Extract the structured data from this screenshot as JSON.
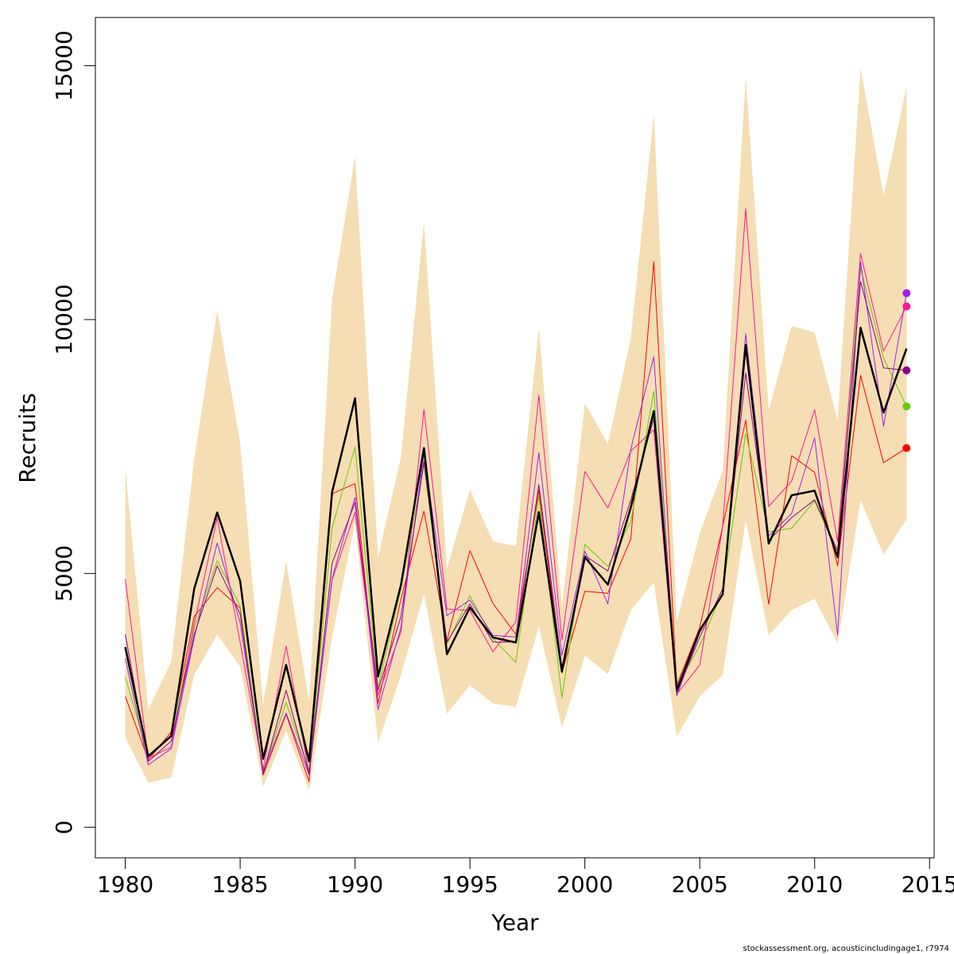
{
  "chart_data": {
    "type": "line",
    "xlabel": "Year",
    "ylabel": "Recruits",
    "xlim": [
      1978.7,
      2015.2
    ],
    "ylim": [
      -600,
      15950
    ],
    "x_ticks": [
      1980,
      1985,
      1990,
      1995,
      2000,
      2005,
      2010,
      2015
    ],
    "y_ticks": [
      0,
      5000,
      10000,
      15000
    ],
    "x": [
      1980,
      1981,
      1982,
      1983,
      1984,
      1985,
      1986,
      1987,
      1988,
      1989,
      1990,
      1991,
      1992,
      1993,
      1994,
      1995,
      1996,
      1997,
      1998,
      1999,
      2000,
      2001,
      2002,
      2003,
      2004,
      2005,
      2006,
      2007,
      2008,
      2009,
      2010,
      2011,
      2012,
      2013,
      2014
    ],
    "band": {
      "color": "#F5DEB3",
      "upper": [
        7080,
        2320,
        3260,
        7260,
        10180,
        7580,
        2420,
        5250,
        2480,
        10400,
        13220,
        5320,
        7300,
        11920,
        5100,
        6650,
        5630,
        5540,
        9830,
        4350,
        8350,
        7550,
        9630,
        14060,
        4050,
        5790,
        7030,
        14790,
        8220,
        9870,
        9750,
        8010,
        14960,
        12440,
        14580
      ],
      "lower": [
        1770,
        880,
        980,
        3000,
        3800,
        3160,
        800,
        1900,
        730,
        3740,
        6000,
        1670,
        3000,
        4600,
        2240,
        2800,
        2440,
        2370,
        3960,
        1960,
        3380,
        3020,
        4280,
        4820,
        1780,
        2580,
        3000,
        6050,
        3780,
        4280,
        4500,
        3630,
        6440,
        5370,
        6070
      ]
    },
    "series": [
      {
        "color": "#FF0000",
        "width": 1,
        "end_point": true,
        "values": [
          2580,
          1330,
          1880,
          4150,
          4720,
          4320,
          1030,
          2230,
          900,
          6570,
          6770,
          2440,
          4500,
          6230,
          3680,
          5450,
          4410,
          3800,
          6640,
          3040,
          4650,
          4610,
          5680,
          11140,
          2800,
          3940,
          5930,
          8020,
          4390,
          7320,
          6990,
          5150,
          8900,
          7180,
          7470
        ]
      },
      {
        "color": "#66CC00",
        "width": 1,
        "end_point": true,
        "values": [
          2960,
          1400,
          1820,
          3920,
          5250,
          4360,
          1100,
          2460,
          1120,
          5900,
          7490,
          2750,
          4700,
          7140,
          3610,
          4560,
          3720,
          3250,
          6520,
          2550,
          5570,
          5140,
          6020,
          8590,
          2780,
          3580,
          4650,
          7760,
          5820,
          5890,
          6430,
          5380,
          11010,
          9240,
          8290
        ]
      },
      {
        "color": "#FF1493",
        "width": 1,
        "end_point": true,
        "values": [
          4890,
          1360,
          1580,
          4010,
          6090,
          3640,
          1140,
          3570,
          1060,
          4870,
          6200,
          2600,
          3850,
          8230,
          4300,
          4270,
          3460,
          4050,
          8510,
          3690,
          7010,
          6290,
          7410,
          7830,
          2620,
          3200,
          5930,
          12180,
          6320,
          6820,
          8230,
          5630,
          11300,
          9380,
          10260
        ]
      },
      {
        "color": "#A020F0",
        "width": 1,
        "end_point": true,
        "values": [
          3330,
          1230,
          1550,
          3730,
          5600,
          4030,
          1100,
          2250,
          1040,
          4900,
          6500,
          2320,
          3940,
          7370,
          4170,
          4480,
          3780,
          3750,
          7380,
          3390,
          5440,
          4400,
          7450,
          9270,
          2590,
          3840,
          4610,
          9720,
          5740,
          6180,
          7670,
          3790,
          11140,
          7900,
          10520
        ]
      },
      {
        "color": "#8B008B",
        "width": 1,
        "end_point": true,
        "values": [
          3800,
          1300,
          1700,
          3800,
          5150,
          4200,
          1050,
          2700,
          1050,
          5200,
          6400,
          2700,
          4150,
          7200,
          3650,
          4400,
          3650,
          3650,
          6750,
          3150,
          5350,
          5050,
          6450,
          8050,
          2650,
          3750,
          4700,
          8950,
          5650,
          6100,
          6450,
          5450,
          10750,
          9050,
          9000
        ]
      },
      {
        "color": "#000000",
        "width": 2.5,
        "end_point": false,
        "values": [
          3550,
          1400,
          1800,
          4700,
          6200,
          4850,
          1350,
          3200,
          1300,
          6600,
          8450,
          2970,
          4780,
          7470,
          3410,
          4330,
          3740,
          3640,
          6210,
          3070,
          5320,
          4780,
          6300,
          8200,
          2700,
          3880,
          4590,
          9500,
          5590,
          6540,
          6630,
          5320,
          9840,
          8170,
          9430
        ]
      }
    ]
  },
  "caption": "stockassessment.org, acousticincludingage1, r7974"
}
